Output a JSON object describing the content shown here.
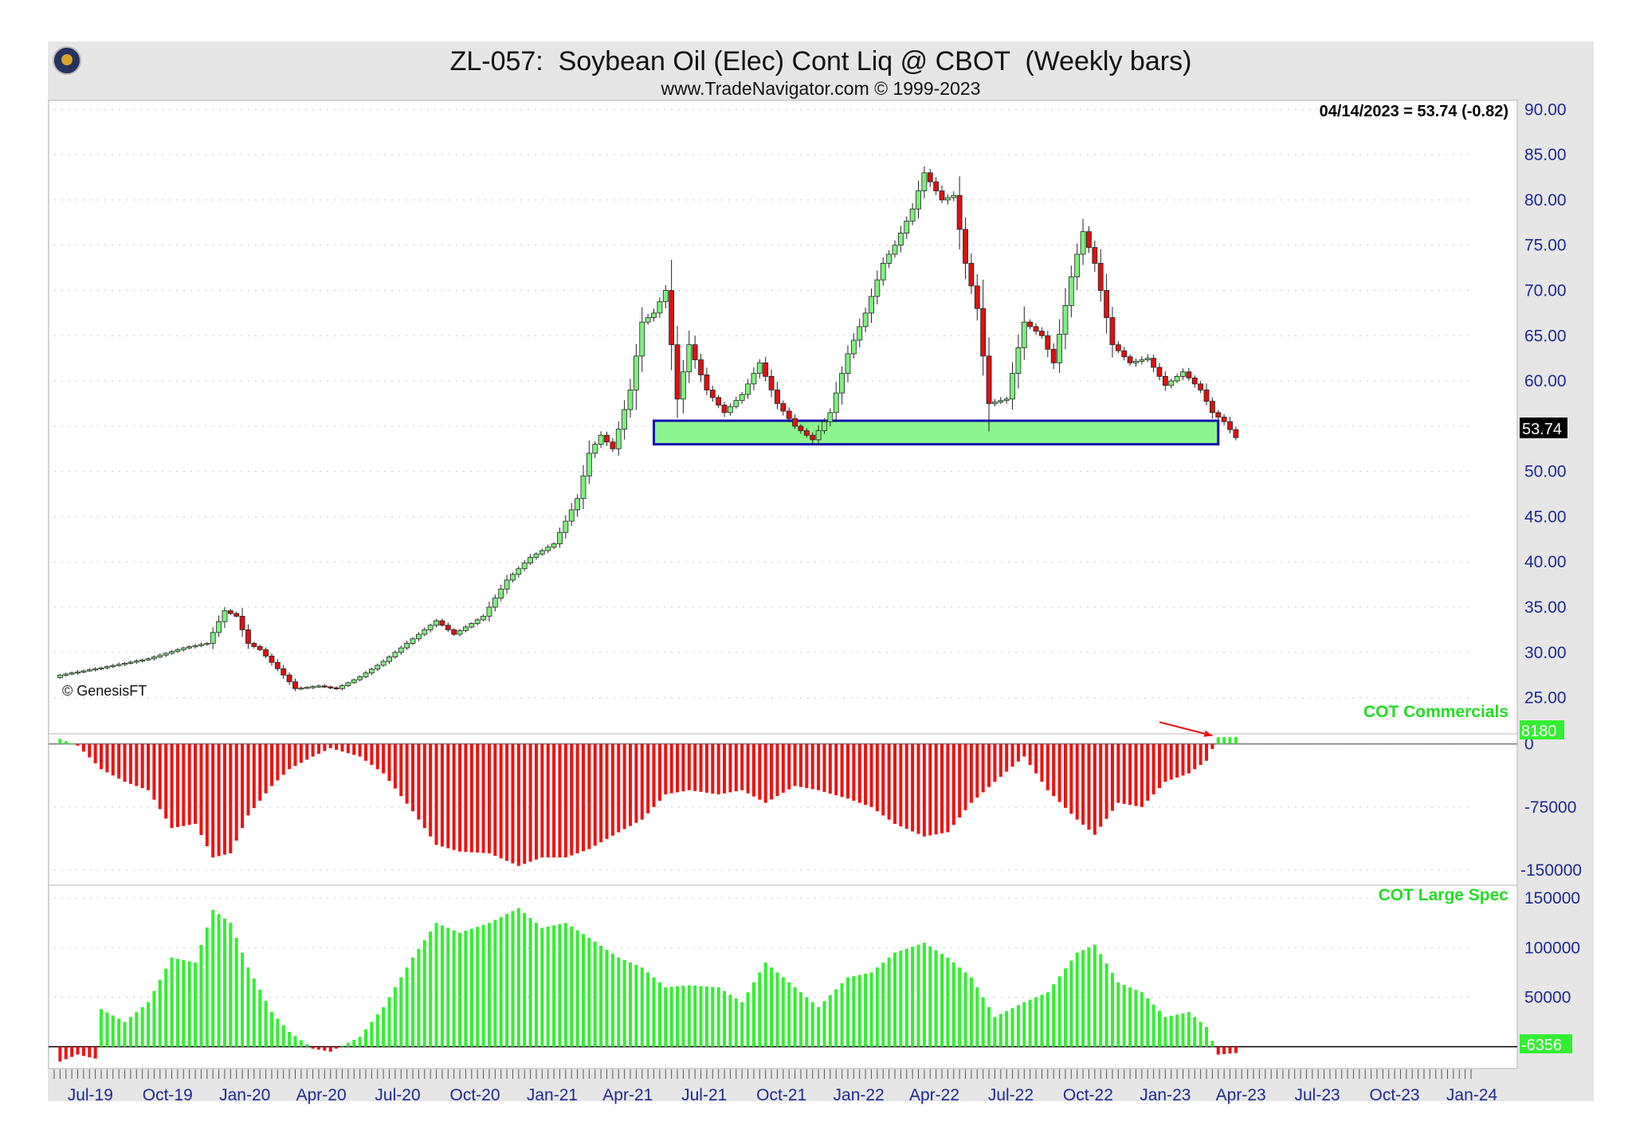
{
  "header": {
    "title": "ZL-057:  Soybean Oil (Elec) Cont Liq @ CBOT  (Weekly bars)",
    "subtitle": "www.TradeNavigator.com © 1999-2023",
    "logo_icon": "globe-logo-icon"
  },
  "colors": {
    "bull": "#7ef07e",
    "bear": "#dd1111",
    "cot_pos": "#33ee33",
    "cot_neg": "#ee1111",
    "axis_text": "#1d2a8f",
    "support_fill": "#8df58d",
    "support_border": "#1010b0",
    "arrow": "#ee1111"
  },
  "chart_data": [
    {
      "type": "candlestick",
      "title": "ZL-057:  Soybean Oil (Elec) Cont Liq @ CBOT  (Weekly bars)",
      "readout": "04/14/2023 = 53.74 (-0.82)",
      "last_value_label": "53.74",
      "credit": "© GenesisFT",
      "ylim": [
        21,
        91
      ],
      "yticks": [
        "90.00",
        "85.00",
        "80.00",
        "75.00",
        "70.00",
        "65.00",
        "60.00",
        "55.00",
        "50.00",
        "45.00",
        "40.00",
        "35.00",
        "30.00",
        "25.00"
      ],
      "x_start": "2019-06-07",
      "x_end": "2024-01-19",
      "xticks": [
        "Jul-19",
        "Oct-19",
        "Jan-20",
        "Apr-20",
        "Jul-20",
        "Oct-20",
        "Jan-21",
        "Apr-21",
        "Jul-21",
        "Oct-21",
        "Jan-22",
        "Apr-22",
        "Jul-22",
        "Oct-22",
        "Jan-23",
        "Apr-23",
        "Jul-23",
        "Oct-23",
        "Jan-24"
      ],
      "support_zone": {
        "from": "2021-05-21",
        "to": "2023-03-24",
        "low": 53.0,
        "high": 55.6
      },
      "annotation_arrow": {
        "from_date": "2023-01-13",
        "from_value": 22.3,
        "to_date": "2023-03-17",
        "to_value": 20.8
      },
      "weekly_close": [
        {
          "date": "2019-06-14",
          "value": 27.5
        },
        {
          "date": "2019-08-02",
          "value": 28.3
        },
        {
          "date": "2019-09-27",
          "value": 29.3
        },
        {
          "date": "2019-11-08",
          "value": 30.5
        },
        {
          "date": "2019-12-06",
          "value": 31.0
        },
        {
          "date": "2019-12-27",
          "value": 34.6
        },
        {
          "date": "2020-01-10",
          "value": 34.0
        },
        {
          "date": "2020-01-24",
          "value": 31.0
        },
        {
          "date": "2020-02-07",
          "value": 30.3
        },
        {
          "date": "2020-03-06",
          "value": 27.5
        },
        {
          "date": "2020-03-20",
          "value": 26.0
        },
        {
          "date": "2020-04-17",
          "value": 26.3
        },
        {
          "date": "2020-05-08",
          "value": 26.0
        },
        {
          "date": "2020-06-05",
          "value": 27.3
        },
        {
          "date": "2020-07-03",
          "value": 29.0
        },
        {
          "date": "2020-08-07",
          "value": 31.5
        },
        {
          "date": "2020-09-04",
          "value": 33.5
        },
        {
          "date": "2020-09-25",
          "value": 32.0
        },
        {
          "date": "2020-10-30",
          "value": 34.0
        },
        {
          "date": "2020-11-27",
          "value": 38.0
        },
        {
          "date": "2020-12-25",
          "value": 40.5
        },
        {
          "date": "2021-01-22",
          "value": 42.0
        },
        {
          "date": "2021-02-19",
          "value": 47.0
        },
        {
          "date": "2021-03-05",
          "value": 52.0
        },
        {
          "date": "2021-03-19",
          "value": 54.0
        },
        {
          "date": "2021-04-02",
          "value": 52.5
        },
        {
          "date": "2021-04-23",
          "value": 59.0
        },
        {
          "date": "2021-05-07",
          "value": 66.5
        },
        {
          "date": "2021-05-21",
          "value": 67.5
        },
        {
          "date": "2021-06-04",
          "value": 70.0
        },
        {
          "date": "2021-06-18",
          "value": 58.0
        },
        {
          "date": "2021-07-02",
          "value": 64.0
        },
        {
          "date": "2021-07-23",
          "value": 59.0
        },
        {
          "date": "2021-08-13",
          "value": 56.5
        },
        {
          "date": "2021-09-03",
          "value": 58.5
        },
        {
          "date": "2021-09-24",
          "value": 62.0
        },
        {
          "date": "2021-10-15",
          "value": 57.5
        },
        {
          "date": "2021-11-05",
          "value": 55.0
        },
        {
          "date": "2021-11-26",
          "value": 53.5
        },
        {
          "date": "2021-12-17",
          "value": 56.5
        },
        {
          "date": "2022-01-07",
          "value": 63.0
        },
        {
          "date": "2022-01-28",
          "value": 67.5
        },
        {
          "date": "2022-02-18",
          "value": 73.0
        },
        {
          "date": "2022-03-04",
          "value": 75.0
        },
        {
          "date": "2022-03-25",
          "value": 79.0
        },
        {
          "date": "2022-04-08",
          "value": 83.0
        },
        {
          "date": "2022-04-29",
          "value": 80.0
        },
        {
          "date": "2022-05-13",
          "value": 80.5
        },
        {
          "date": "2022-05-27",
          "value": 73.0
        },
        {
          "date": "2022-06-10",
          "value": 68.0
        },
        {
          "date": "2022-06-24",
          "value": 57.5
        },
        {
          "date": "2022-07-15",
          "value": 58.0
        },
        {
          "date": "2022-08-05",
          "value": 66.5
        },
        {
          "date": "2022-08-26",
          "value": 65.0
        },
        {
          "date": "2022-09-09",
          "value": 62.0
        },
        {
          "date": "2022-09-30",
          "value": 71.5
        },
        {
          "date": "2022-10-14",
          "value": 76.5
        },
        {
          "date": "2022-10-28",
          "value": 73.0
        },
        {
          "date": "2022-11-18",
          "value": 64.0
        },
        {
          "date": "2022-12-09",
          "value": 62.0
        },
        {
          "date": "2022-12-30",
          "value": 62.5
        },
        {
          "date": "2023-01-20",
          "value": 59.5
        },
        {
          "date": "2023-02-10",
          "value": 61.0
        },
        {
          "date": "2023-03-03",
          "value": 59.0
        },
        {
          "date": "2023-03-17",
          "value": 56.5
        },
        {
          "date": "2023-03-31",
          "value": 55.5
        },
        {
          "date": "2023-04-14",
          "value": 53.74
        }
      ]
    },
    {
      "type": "bar",
      "title": "COT Commercials",
      "last_value_label": "8180",
      "ylim": [
        -168000,
        12000
      ],
      "yticks": [
        "0",
        "-75000",
        "-150000"
      ],
      "weekly_values": [
        {
          "date": "2019-06-14",
          "value": 6000
        },
        {
          "date": "2019-07-05",
          "value": -2000
        },
        {
          "date": "2019-08-02",
          "value": -30000
        },
        {
          "date": "2019-08-30",
          "value": -45000
        },
        {
          "date": "2019-09-27",
          "value": -55000
        },
        {
          "date": "2019-10-25",
          "value": -100000
        },
        {
          "date": "2019-11-22",
          "value": -95000
        },
        {
          "date": "2019-12-13",
          "value": -135000
        },
        {
          "date": "2020-01-03",
          "value": -130000
        },
        {
          "date": "2020-01-24",
          "value": -85000
        },
        {
          "date": "2020-02-21",
          "value": -50000
        },
        {
          "date": "2020-03-13",
          "value": -30000
        },
        {
          "date": "2020-04-10",
          "value": -15000
        },
        {
          "date": "2020-05-01",
          "value": -5000
        },
        {
          "date": "2020-06-05",
          "value": -15000
        },
        {
          "date": "2020-07-03",
          "value": -35000
        },
        {
          "date": "2020-08-07",
          "value": -80000
        },
        {
          "date": "2020-09-04",
          "value": -120000
        },
        {
          "date": "2020-10-02",
          "value": -128000
        },
        {
          "date": "2020-11-06",
          "value": -130000
        },
        {
          "date": "2020-12-11",
          "value": -145000
        },
        {
          "date": "2021-01-08",
          "value": -135000
        },
        {
          "date": "2021-02-05",
          "value": -135000
        },
        {
          "date": "2021-03-05",
          "value": -125000
        },
        {
          "date": "2021-04-09",
          "value": -105000
        },
        {
          "date": "2021-05-07",
          "value": -90000
        },
        {
          "date": "2021-06-04",
          "value": -60000
        },
        {
          "date": "2021-07-02",
          "value": -55000
        },
        {
          "date": "2021-08-06",
          "value": -60000
        },
        {
          "date": "2021-09-03",
          "value": -55000
        },
        {
          "date": "2021-10-01",
          "value": -70000
        },
        {
          "date": "2021-11-05",
          "value": -50000
        },
        {
          "date": "2021-12-03",
          "value": -55000
        },
        {
          "date": "2022-01-07",
          "value": -65000
        },
        {
          "date": "2022-02-04",
          "value": -75000
        },
        {
          "date": "2022-03-04",
          "value": -95000
        },
        {
          "date": "2022-04-08",
          "value": -110000
        },
        {
          "date": "2022-05-06",
          "value": -105000
        },
        {
          "date": "2022-06-03",
          "value": -70000
        },
        {
          "date": "2022-07-01",
          "value": -45000
        },
        {
          "date": "2022-08-05",
          "value": -15000
        },
        {
          "date": "2022-09-02",
          "value": -55000
        },
        {
          "date": "2022-10-07",
          "value": -90000
        },
        {
          "date": "2022-10-28",
          "value": -108000
        },
        {
          "date": "2022-11-25",
          "value": -70000
        },
        {
          "date": "2022-12-23",
          "value": -75000
        },
        {
          "date": "2023-01-20",
          "value": -45000
        },
        {
          "date": "2023-02-17",
          "value": -35000
        },
        {
          "date": "2023-03-10",
          "value": -20000
        },
        {
          "date": "2023-03-24",
          "value": 8000
        },
        {
          "date": "2023-04-14",
          "value": 8180
        }
      ]
    },
    {
      "type": "bar",
      "title": "COT Large Spec",
      "last_value_label": "-6356",
      "ylim": [
        -22000,
        163000
      ],
      "yticks": [
        "150000",
        "100000",
        "50000",
        "0"
      ],
      "weekly_values": [
        {
          "date": "2019-06-14",
          "value": -15000
        },
        {
          "date": "2019-07-05",
          "value": -8000
        },
        {
          "date": "2019-07-26",
          "value": -12000
        },
        {
          "date": "2019-08-02",
          "value": 38000
        },
        {
          "date": "2019-08-30",
          "value": 25000
        },
        {
          "date": "2019-09-27",
          "value": 45000
        },
        {
          "date": "2019-10-25",
          "value": 90000
        },
        {
          "date": "2019-11-22",
          "value": 85000
        },
        {
          "date": "2019-12-13",
          "value": 138000
        },
        {
          "date": "2020-01-03",
          "value": 125000
        },
        {
          "date": "2020-01-24",
          "value": 80000
        },
        {
          "date": "2020-02-21",
          "value": 35000
        },
        {
          "date": "2020-03-13",
          "value": 15000
        },
        {
          "date": "2020-04-10",
          "value": -2000
        },
        {
          "date": "2020-05-01",
          "value": -5000
        },
        {
          "date": "2020-06-05",
          "value": 10000
        },
        {
          "date": "2020-07-03",
          "value": 40000
        },
        {
          "date": "2020-08-07",
          "value": 90000
        },
        {
          "date": "2020-09-04",
          "value": 125000
        },
        {
          "date": "2020-10-02",
          "value": 115000
        },
        {
          "date": "2020-11-06",
          "value": 125000
        },
        {
          "date": "2020-12-11",
          "value": 140000
        },
        {
          "date": "2021-01-08",
          "value": 120000
        },
        {
          "date": "2021-02-05",
          "value": 125000
        },
        {
          "date": "2021-03-05",
          "value": 110000
        },
        {
          "date": "2021-04-09",
          "value": 90000
        },
        {
          "date": "2021-05-07",
          "value": 80000
        },
        {
          "date": "2021-06-04",
          "value": 60000
        },
        {
          "date": "2021-07-02",
          "value": 62000
        },
        {
          "date": "2021-08-06",
          "value": 60000
        },
        {
          "date": "2021-09-03",
          "value": 45000
        },
        {
          "date": "2021-10-01",
          "value": 85000
        },
        {
          "date": "2021-11-05",
          "value": 60000
        },
        {
          "date": "2021-12-03",
          "value": 40000
        },
        {
          "date": "2022-01-07",
          "value": 70000
        },
        {
          "date": "2022-02-04",
          "value": 75000
        },
        {
          "date": "2022-03-04",
          "value": 95000
        },
        {
          "date": "2022-04-08",
          "value": 105000
        },
        {
          "date": "2022-05-06",
          "value": 90000
        },
        {
          "date": "2022-06-03",
          "value": 70000
        },
        {
          "date": "2022-07-01",
          "value": 30000
        },
        {
          "date": "2022-08-05",
          "value": 45000
        },
        {
          "date": "2022-09-02",
          "value": 55000
        },
        {
          "date": "2022-10-07",
          "value": 95000
        },
        {
          "date": "2022-10-28",
          "value": 103000
        },
        {
          "date": "2022-11-25",
          "value": 65000
        },
        {
          "date": "2022-12-23",
          "value": 55000
        },
        {
          "date": "2023-01-20",
          "value": 30000
        },
        {
          "date": "2023-02-17",
          "value": 35000
        },
        {
          "date": "2023-03-10",
          "value": 20000
        },
        {
          "date": "2023-03-24",
          "value": -8000
        },
        {
          "date": "2023-04-14",
          "value": -6356
        }
      ]
    }
  ]
}
